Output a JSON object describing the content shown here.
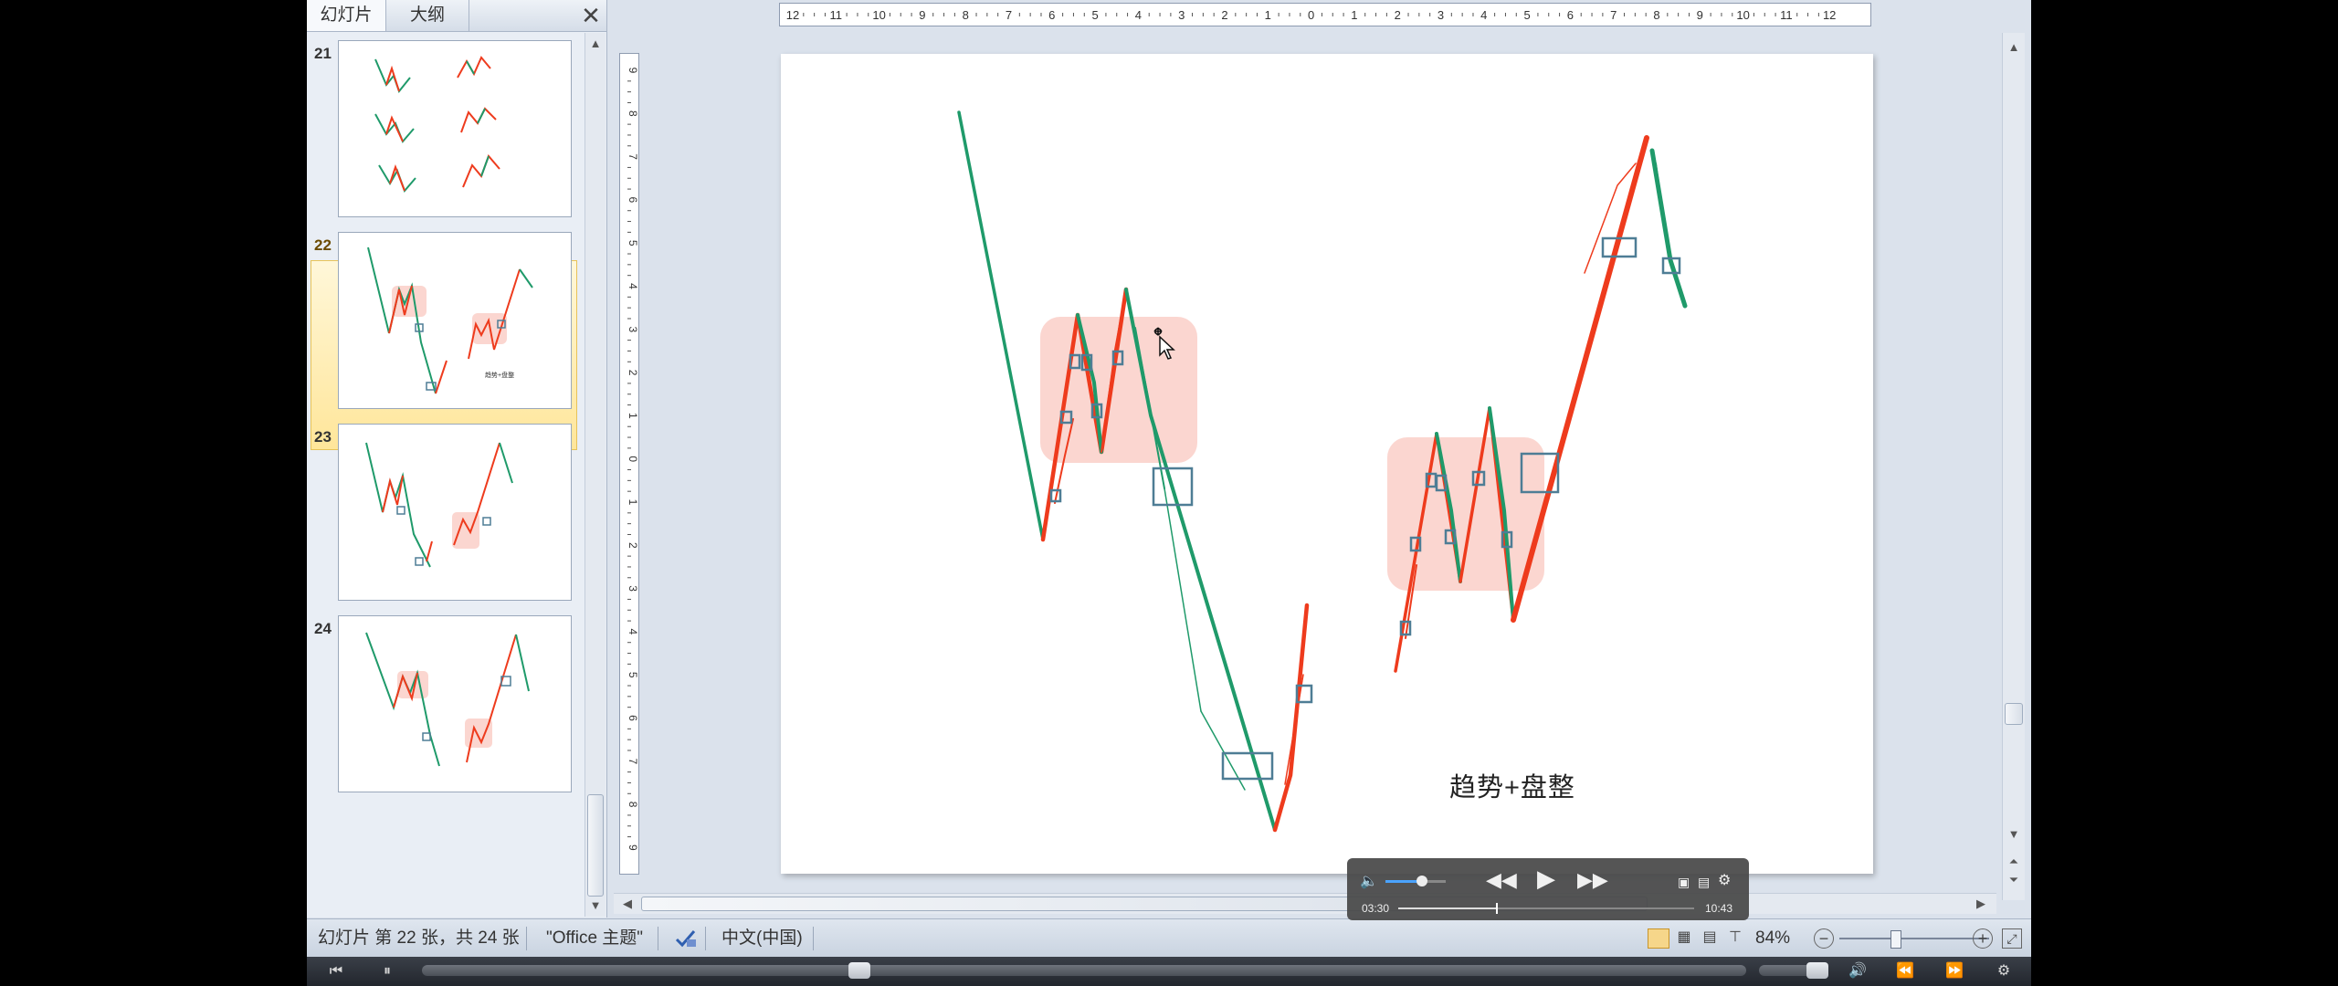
{
  "left_panel": {
    "tabs": [
      {
        "label": "幻灯片"
      },
      {
        "label": "大纲"
      }
    ],
    "close_glyph": "✕",
    "slides": [
      {
        "number": "21",
        "selected": false
      },
      {
        "number": "22",
        "selected": true,
        "caption": "趋势+盘整"
      },
      {
        "number": "23",
        "selected": false
      },
      {
        "number": "24",
        "selected": false
      }
    ]
  },
  "ruler": {
    "horizontal_labels": [
      "12",
      "11",
      "10",
      "9",
      "8",
      "7",
      "6",
      "5",
      "4",
      "3",
      "2",
      "1",
      "0",
      "1",
      "2",
      "3",
      "4",
      "5",
      "6",
      "7",
      "8",
      "9",
      "10",
      "11",
      "12"
    ],
    "vertical_labels": [
      "9",
      "8",
      "7",
      "6",
      "5",
      "4",
      "3",
      "2",
      "1",
      "0",
      "1",
      "2",
      "3",
      "4",
      "5",
      "6",
      "7",
      "8",
      "9"
    ]
  },
  "slide": {
    "caption": "趋势+盘整",
    "colors": {
      "up": "#ee3b1d",
      "down": "#1f9a6a",
      "box": "#4e7d95",
      "zone": "#fbd6d0"
    }
  },
  "status_bar": {
    "slide_info": "幻灯片 第 22 张，共 24 张",
    "theme": "\"Office 主题\"",
    "language": "中文(中国)",
    "zoom": "84%"
  },
  "player": {
    "current_time": "03:30",
    "total_time": "10:43",
    "progress": 0.33,
    "volume": 0.6
  }
}
